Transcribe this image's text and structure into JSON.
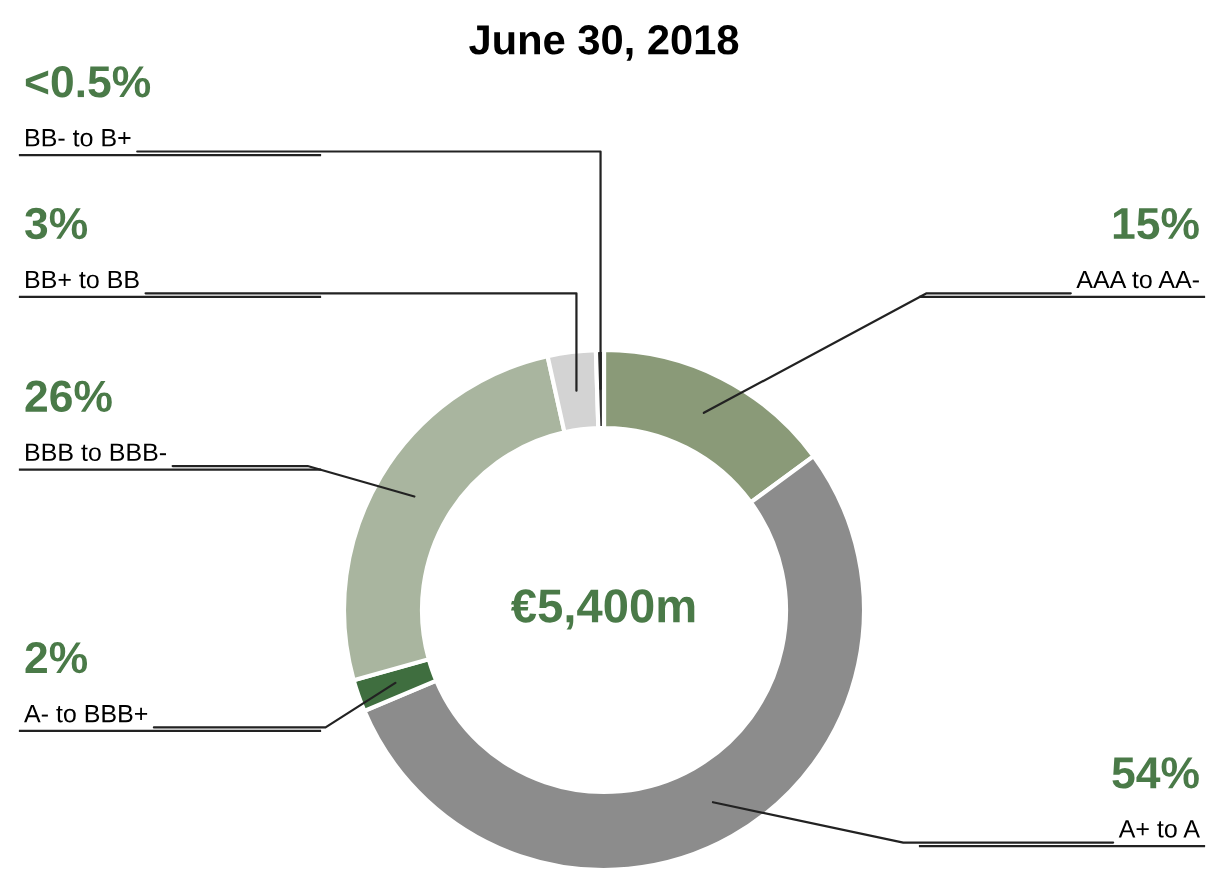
{
  "chart_data": {
    "type": "donut",
    "title": "June 30, 2018",
    "categories": [
      "AAA to AA-",
      "A+ to A",
      "A- to BBB+",
      "BBB to BBB-",
      "BB+ to BB",
      "BB- to B+"
    ],
    "values": [
      15,
      54,
      2,
      26,
      3,
      0.5
    ],
    "value_labels": [
      "15%",
      "54%",
      "2%",
      "26%",
      "3%",
      "<0.5%"
    ],
    "colors": [
      "#8a9a78",
      "#8c8c8c",
      "#3f6e3f",
      "#a9b59f",
      "#d3d3d3",
      "#333333"
    ],
    "annotations": [
      "€5,400m"
    ],
    "legend": false
  }
}
